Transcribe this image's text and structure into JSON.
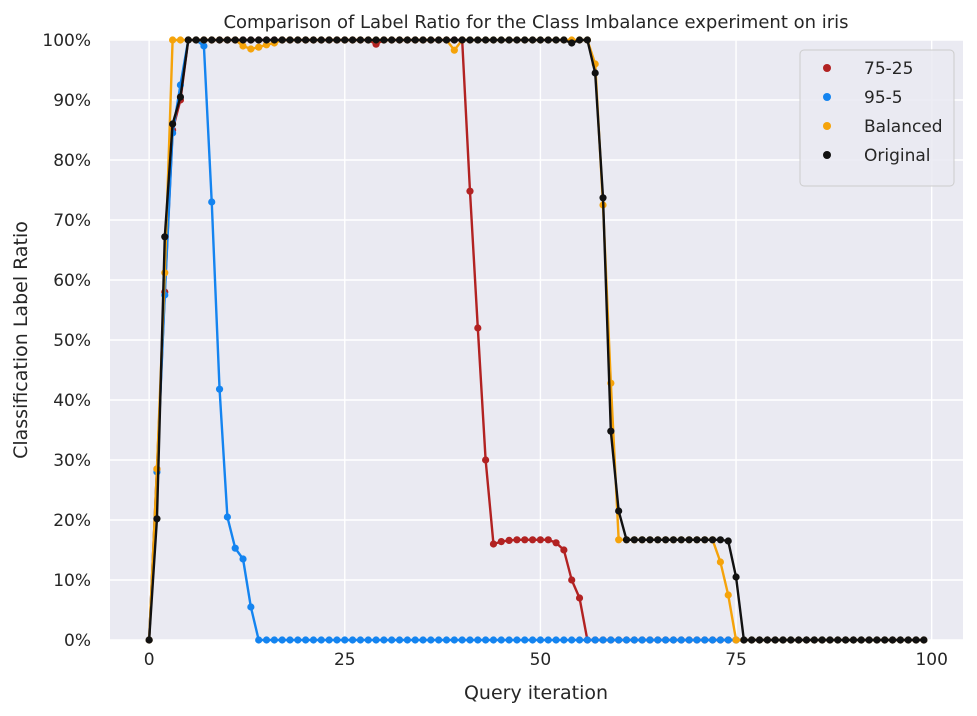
{
  "chart_data": {
    "type": "line",
    "title": "Comparison of Label Ratio for the Class Imbalance experiment on iris",
    "xlabel": "Query iteration",
    "ylabel": "Classification Label Ratio",
    "xlim": [
      -5,
      104
    ],
    "ylim": [
      0,
      1
    ],
    "xticks": [
      0,
      25,
      50,
      75,
      100
    ],
    "yticks": [
      0,
      0.1,
      0.2,
      0.3,
      0.4,
      0.5,
      0.6,
      0.7,
      0.8,
      0.9,
      1.0
    ],
    "ytick_labels": [
      "0%",
      "10%",
      "20%",
      "30%",
      "40%",
      "50%",
      "60%",
      "70%",
      "80%",
      "90%",
      "100%"
    ],
    "grid": true,
    "background": "#EAEAF2",
    "grid_color": "#FFFFFF",
    "legend_position": "top-right",
    "legend_labels": [
      "75-25",
      "95-5",
      "Balanced",
      "Original"
    ],
    "series": [
      {
        "name": "75-25",
        "color": "#B22222",
        "x": [
          0,
          1,
          2,
          3,
          4,
          5,
          6,
          7,
          8,
          9,
          10,
          11,
          12,
          13,
          14,
          15,
          16,
          17,
          18,
          19,
          20,
          21,
          22,
          23,
          24,
          25,
          26,
          27,
          28,
          29,
          30,
          31,
          32,
          33,
          34,
          35,
          36,
          37,
          38,
          39,
          40,
          41,
          42,
          43,
          44,
          45,
          46,
          47,
          48,
          49,
          50,
          51,
          52,
          53,
          54,
          55,
          56,
          57,
          58,
          59,
          60,
          61,
          62,
          63,
          64,
          65,
          66,
          67,
          68,
          69,
          70,
          71,
          72,
          73,
          74,
          75,
          76,
          77,
          78,
          79,
          80,
          81,
          82,
          83,
          84,
          85,
          86,
          87,
          88,
          89,
          90,
          91,
          92,
          93,
          94,
          95,
          96,
          97,
          98,
          99
        ],
        "y": [
          0,
          0.285,
          0.58,
          0.85,
          0.9,
          1,
          1,
          1,
          1,
          1,
          1,
          1,
          1,
          1,
          1,
          1,
          1,
          1,
          1,
          1,
          1,
          1,
          1,
          1,
          1,
          1,
          1,
          1,
          1,
          0.993,
          1,
          1,
          1,
          1,
          1,
          1,
          1,
          1,
          1,
          1,
          1,
          0.748,
          0.52,
          0.3,
          0.16,
          0.164,
          0.166,
          0.167,
          0.167,
          0.167,
          0.167,
          0.167,
          0.162,
          0.15,
          0.1,
          0.07,
          0,
          0,
          0,
          0,
          0,
          0,
          0,
          0,
          0,
          0,
          0,
          0,
          0,
          0,
          0,
          0,
          0,
          0,
          0,
          0,
          0,
          0,
          0,
          0,
          0,
          0,
          0,
          0,
          0,
          0,
          0,
          0,
          0,
          0,
          0,
          0,
          0,
          0,
          0,
          0,
          0,
          0,
          0,
          0
        ]
      },
      {
        "name": "95-5",
        "color": "#1484F0",
        "x": [
          0,
          1,
          2,
          3,
          4,
          5,
          6,
          7,
          8,
          9,
          10,
          11,
          12,
          13,
          14,
          15,
          16,
          17,
          18,
          19,
          20,
          21,
          22,
          23,
          24,
          25,
          26,
          27,
          28,
          29,
          30,
          31,
          32,
          33,
          34,
          35,
          36,
          37,
          38,
          39,
          40,
          41,
          42,
          43,
          44,
          45,
          46,
          47,
          48,
          49,
          50,
          51,
          52,
          53,
          54,
          55,
          56,
          57,
          58,
          59,
          60,
          61,
          62,
          63,
          64,
          65,
          66,
          67,
          68,
          69,
          70,
          71,
          72,
          73,
          74,
          75,
          76,
          77,
          78,
          79,
          80,
          81,
          82,
          83,
          84,
          85,
          86,
          87,
          88,
          89,
          90,
          91,
          92,
          93,
          94,
          95,
          96,
          97,
          98,
          99
        ],
        "y": [
          0,
          0.28,
          0.575,
          0.845,
          0.925,
          1,
          1,
          0.99,
          0.73,
          0.418,
          0.205,
          0.153,
          0.135,
          0.055,
          0,
          0,
          0,
          0,
          0,
          0,
          0,
          0,
          0,
          0,
          0,
          0,
          0,
          0,
          0,
          0,
          0,
          0,
          0,
          0,
          0,
          0,
          0,
          0,
          0,
          0,
          0,
          0,
          0,
          0,
          0,
          0,
          0,
          0,
          0,
          0,
          0,
          0,
          0,
          0,
          0,
          0,
          0,
          0,
          0,
          0,
          0,
          0,
          0,
          0,
          0,
          0,
          0,
          0,
          0,
          0,
          0,
          0,
          0,
          0,
          0,
          0,
          0,
          0,
          0,
          0,
          0,
          0,
          0,
          0,
          0,
          0,
          0,
          0,
          0,
          0,
          0,
          0,
          0,
          0,
          0,
          0,
          0,
          0,
          0,
          0
        ]
      },
      {
        "name": "Balanced",
        "color": "#F5A30A",
        "x": [
          0,
          1,
          2,
          3,
          4,
          5,
          6,
          7,
          8,
          9,
          10,
          11,
          12,
          13,
          14,
          15,
          16,
          17,
          18,
          19,
          20,
          21,
          22,
          23,
          24,
          25,
          26,
          27,
          28,
          29,
          30,
          31,
          32,
          33,
          34,
          35,
          36,
          37,
          38,
          39,
          40,
          41,
          42,
          43,
          44,
          45,
          46,
          47,
          48,
          49,
          50,
          51,
          52,
          53,
          54,
          55,
          56,
          57,
          58,
          59,
          60,
          61,
          62,
          63,
          64,
          65,
          66,
          67,
          68,
          69,
          70,
          71,
          72,
          73,
          74,
          75,
          76,
          77,
          78,
          79,
          80,
          81,
          82,
          83,
          84,
          85,
          86,
          87,
          88,
          89,
          90,
          91,
          92,
          93,
          94,
          95,
          96,
          97,
          98,
          99
        ],
        "y": [
          0,
          0.285,
          0.612,
          1,
          1,
          1,
          1,
          1,
          1,
          1,
          1,
          1,
          0.99,
          0.985,
          0.988,
          0.992,
          0.995,
          1,
          1,
          1,
          1,
          1,
          1,
          1,
          1,
          1,
          1,
          1,
          1,
          1,
          1,
          1,
          1,
          1,
          1,
          1,
          1,
          1,
          1,
          0.983,
          1,
          1,
          1,
          1,
          1,
          1,
          1,
          1,
          1,
          1,
          1,
          1,
          1,
          1,
          1,
          1,
          1,
          0.96,
          0.725,
          0.428,
          0.167,
          0.167,
          0.167,
          0.167,
          0.167,
          0.167,
          0.167,
          0.167,
          0.167,
          0.167,
          0.167,
          0.167,
          0.167,
          0.13,
          0.075,
          0,
          0,
          0,
          0,
          0,
          0,
          0,
          0,
          0,
          0,
          0,
          0,
          0,
          0,
          0,
          0,
          0,
          0,
          0,
          0,
          0,
          0,
          0,
          0,
          0
        ]
      },
      {
        "name": "Original",
        "color": "#111111",
        "x": [
          0,
          1,
          2,
          3,
          4,
          5,
          6,
          7,
          8,
          9,
          10,
          11,
          12,
          13,
          14,
          15,
          16,
          17,
          18,
          19,
          20,
          21,
          22,
          23,
          24,
          25,
          26,
          27,
          28,
          29,
          30,
          31,
          32,
          33,
          34,
          35,
          36,
          37,
          38,
          39,
          40,
          41,
          42,
          43,
          44,
          45,
          46,
          47,
          48,
          49,
          50,
          51,
          52,
          53,
          54,
          55,
          56,
          57,
          58,
          59,
          60,
          61,
          62,
          63,
          64,
          65,
          66,
          67,
          68,
          69,
          70,
          71,
          72,
          73,
          74,
          75,
          76,
          77,
          78,
          79,
          80,
          81,
          82,
          83,
          84,
          85,
          86,
          87,
          88,
          89,
          90,
          91,
          92,
          93,
          94,
          95,
          96,
          97,
          98,
          99
        ],
        "y": [
          0,
          0.202,
          0.672,
          0.86,
          0.905,
          1,
          1,
          1,
          1,
          1,
          1,
          1,
          1,
          1,
          1,
          1,
          1,
          1,
          1,
          1,
          1,
          1,
          1,
          1,
          1,
          1,
          1,
          1,
          1,
          1,
          1,
          1,
          1,
          1,
          1,
          1,
          1,
          1,
          1,
          1,
          1,
          1,
          1,
          1,
          1,
          1,
          1,
          1,
          1,
          1,
          1,
          1,
          1,
          1,
          0.995,
          1,
          1,
          0.945,
          0.737,
          0.348,
          0.215,
          0.167,
          0.167,
          0.167,
          0.167,
          0.167,
          0.167,
          0.167,
          0.167,
          0.167,
          0.167,
          0.167,
          0.167,
          0.167,
          0.165,
          0.105,
          0,
          0,
          0,
          0,
          0,
          0,
          0,
          0,
          0,
          0,
          0,
          0,
          0,
          0,
          0,
          0,
          0,
          0,
          0,
          0,
          0,
          0,
          0,
          0
        ]
      }
    ]
  }
}
